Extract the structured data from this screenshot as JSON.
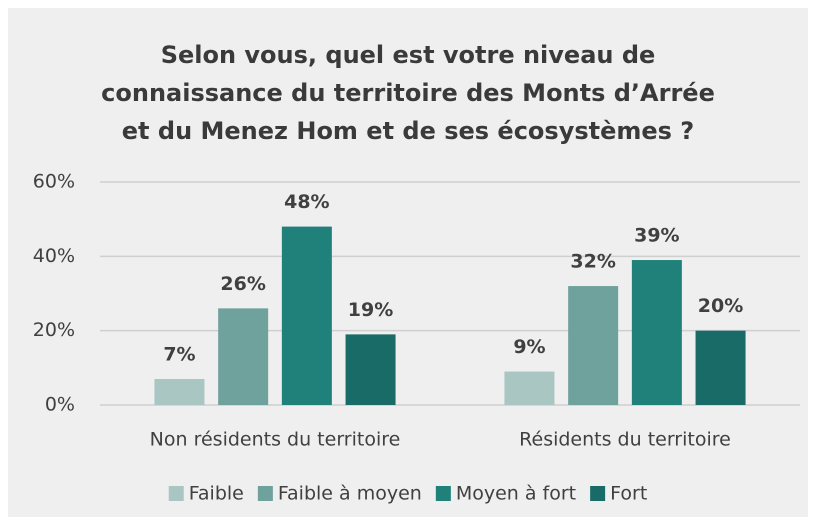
{
  "chart_data": {
    "type": "bar",
    "title": "Selon vous, quel est votre niveau de connaissance du territoire des Monts d’Arrée et du Menez Hom et de ses écosystèmes ?",
    "categories": [
      "Non résidents du territoire",
      "Résidents du territoire"
    ],
    "series": [
      {
        "name": "Faible",
        "color": "#a9c6c3",
        "values": [
          7,
          9
        ],
        "value_labels": [
          "7%",
          "9%"
        ]
      },
      {
        "name": "Faible à moyen",
        "color": "#6fa19d",
        "values": [
          26,
          32
        ],
        "value_labels": [
          "26%",
          "32%"
        ]
      },
      {
        "name": "Moyen à fort",
        "color": "#1f8179",
        "values": [
          48,
          39
        ],
        "value_labels": [
          "48%",
          "39%"
        ]
      },
      {
        "name": "Fort",
        "color": "#186b66",
        "values": [
          19,
          20
        ],
        "value_labels": [
          "19%",
          "20%"
        ]
      }
    ],
    "ylim": [
      0,
      60
    ],
    "yticks": [
      {
        "value": 0,
        "label": "0%"
      },
      {
        "value": 20,
        "label": "20%"
      },
      {
        "value": 40,
        "label": "40%"
      },
      {
        "value": 60,
        "label": "60%"
      }
    ],
    "grid": true,
    "legend": "bottom"
  }
}
